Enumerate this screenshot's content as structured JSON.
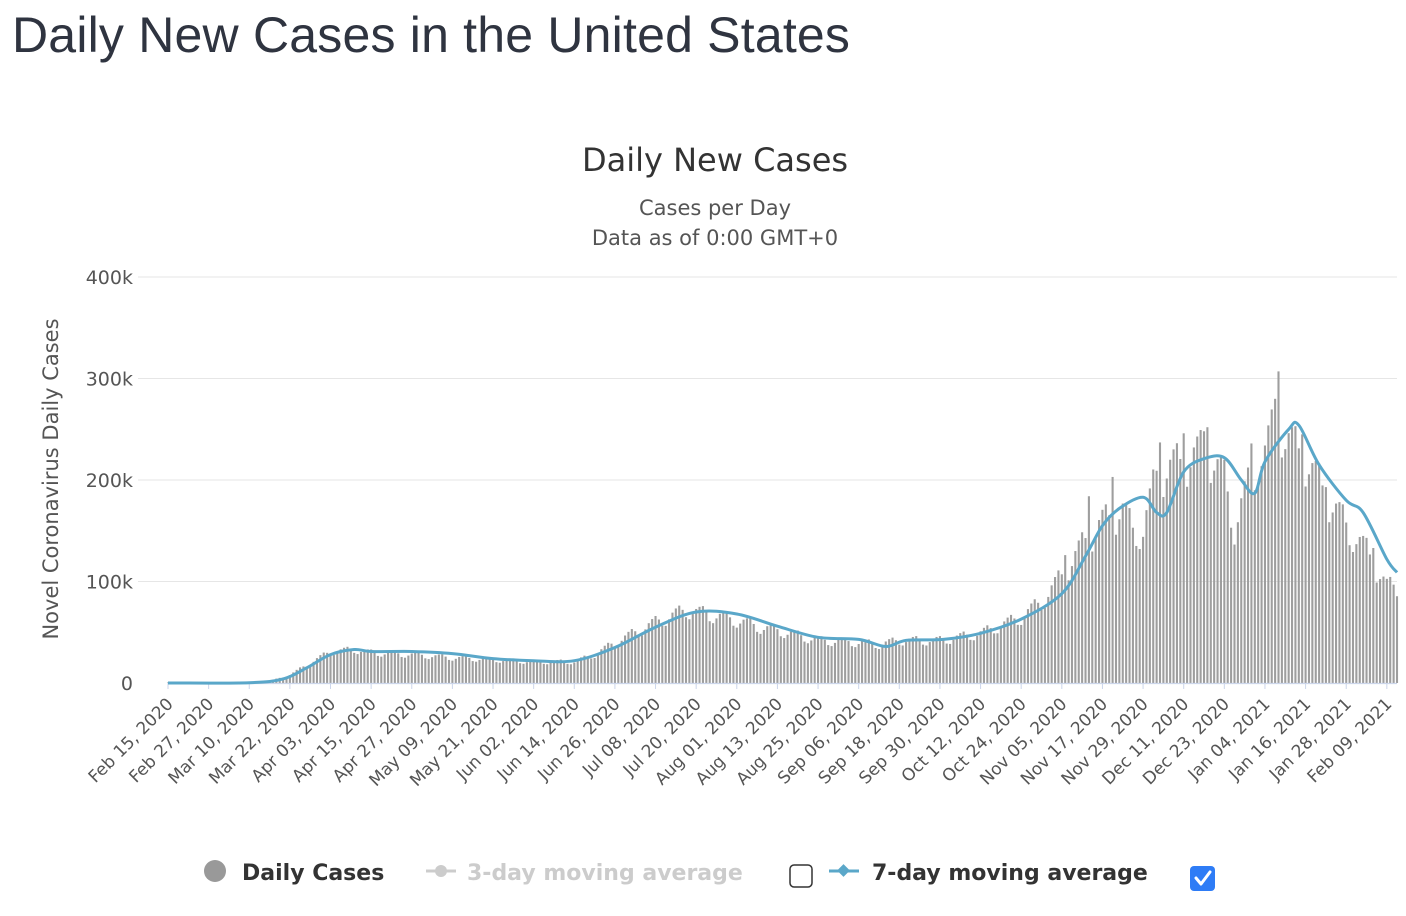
{
  "page": {
    "title": "Daily New Cases in the United States"
  },
  "legend": {
    "items": [
      {
        "label": "Daily Cases",
        "color": "#999999",
        "marker": "circle",
        "enabled": true,
        "checkbox": null
      },
      {
        "label": "3-day moving average",
        "color": "#cccccc",
        "marker": "line-circle",
        "enabled": false,
        "checkbox": false
      },
      {
        "label": "7-day moving average",
        "color": "#5aa7c9",
        "marker": "line-diamond",
        "enabled": true,
        "checkbox": true
      }
    ]
  },
  "chart_data": {
    "type": "bar",
    "title": "Daily New Cases",
    "subtitle": "Cases per Day",
    "subtitle2": "Data as of 0:00 GMT+0",
    "xlabel": "",
    "ylabel": "Novel Coronavirus Daily Cases",
    "ylim": [
      0,
      400000
    ],
    "yticks": [
      0,
      100000,
      200000,
      300000,
      400000
    ],
    "ytick_labels": [
      "0",
      "100k",
      "200k",
      "300k",
      "400k"
    ],
    "grid": true,
    "x_start": "Feb 15, 2020",
    "x_end": "Feb 12, 2021",
    "xtick_labels": [
      "Feb 15, 2020",
      "Feb 27, 2020",
      "Mar 10, 2020",
      "Mar 22, 2020",
      "Apr 03, 2020",
      "Apr 15, 2020",
      "Apr 27, 2020",
      "May 09, 2020",
      "May 21, 2020",
      "Jun 02, 2020",
      "Jun 14, 2020",
      "Jun 26, 2020",
      "Jul 08, 2020",
      "Jul 20, 2020",
      "Aug 01, 2020",
      "Aug 13, 2020",
      "Aug 25, 2020",
      "Sep 06, 2020",
      "Sep 18, 2020",
      "Sep 30, 2020",
      "Oct 12, 2020",
      "Oct 24, 2020",
      "Nov 05, 2020",
      "Nov 17, 2020",
      "Nov 29, 2020",
      "Dec 11, 2020",
      "Dec 23, 2020",
      "Jan 04, 2021",
      "Jan 16, 2021",
      "Jan 28, 2021",
      "Feb 09, 2021"
    ],
    "daily_anchors": [
      [
        "Feb 15, 2020",
        0
      ],
      [
        "Mar 01, 2020",
        50
      ],
      [
        "Mar 10, 2020",
        300
      ],
      [
        "Mar 15, 2020",
        900
      ],
      [
        "Mar 22, 2020",
        8000
      ],
      [
        "Mar 27, 2020",
        18000
      ],
      [
        "Apr 03, 2020",
        31000
      ],
      [
        "Apr 10, 2020",
        33000
      ],
      [
        "Apr 15, 2020",
        30000
      ],
      [
        "Apr 27, 2020",
        28000
      ],
      [
        "May 09, 2020",
        25000
      ],
      [
        "May 21, 2020",
        23000
      ],
      [
        "Jun 02, 2020",
        21000
      ],
      [
        "Jun 14, 2020",
        21000
      ],
      [
        "Jun 20, 2020",
        28000
      ],
      [
        "Jun 26, 2020",
        40000
      ],
      [
        "Jul 08, 2020",
        60000
      ],
      [
        "Jul 17, 2020",
        72000
      ],
      [
        "Jul 25, 2020",
        67000
      ],
      [
        "Aug 01, 2020",
        62000
      ],
      [
        "Aug 08, 2020",
        55000
      ],
      [
        "Aug 13, 2020",
        52000
      ],
      [
        "Aug 25, 2020",
        42000
      ],
      [
        "Sep 06, 2020",
        40000
      ],
      [
        "Sep 12, 2020",
        38000
      ],
      [
        "Sep 18, 2020",
        42000
      ],
      [
        "Sep 30, 2020",
        42000
      ],
      [
        "Oct 12, 2020",
        49000
      ],
      [
        "Oct 24, 2020",
        65000
      ],
      [
        "Oct 30, 2020",
        80000
      ],
      [
        "Nov 05, 2020",
        105000
      ],
      [
        "Nov 12, 2020",
        140000
      ],
      [
        "Nov 17, 2020",
        158000
      ],
      [
        "Nov 23, 2020",
        170000
      ],
      [
        "Nov 26, 2020",
        150000
      ],
      [
        "Nov 29, 2020",
        150000
      ],
      [
        "Dec 03, 2020",
        205000
      ],
      [
        "Dec 11, 2020",
        218000
      ],
      [
        "Dec 18, 2020",
        230000
      ],
      [
        "Dec 23, 2020",
        200000
      ],
      [
        "Dec 26, 2020",
        155000
      ],
      [
        "Dec 28, 2020",
        175000
      ],
      [
        "Jan 02, 2021",
        220000
      ],
      [
        "Jan 04, 2021",
        225000
      ],
      [
        "Jan 08, 2021",
        265000
      ],
      [
        "Jan 10, 2021",
        240000
      ],
      [
        "Jan 16, 2021",
        220000
      ],
      [
        "Jan 22, 2021",
        185000
      ],
      [
        "Jan 28, 2021",
        155000
      ],
      [
        "Feb 03, 2021",
        130000
      ],
      [
        "Feb 09, 2021",
        95000
      ],
      [
        "Feb 12, 2021",
        95000
      ]
    ],
    "weekly_pattern": [
      0.88,
      0.96,
      1.04,
      1.08,
      1.1,
      1.02,
      0.9
    ],
    "spikes": [
      [
        "Nov 06, 2020",
        126000
      ],
      [
        "Nov 13, 2020",
        184000
      ],
      [
        "Nov 20, 2020",
        203000
      ],
      [
        "Dec 04, 2020",
        237000
      ],
      [
        "Dec 11, 2020",
        246000
      ],
      [
        "Dec 17, 2020",
        248000
      ],
      [
        "Dec 18, 2020",
        252000
      ],
      [
        "Dec 31, 2020",
        236000
      ],
      [
        "Jan 07, 2021",
        280000
      ],
      [
        "Jan 08, 2021",
        307000
      ],
      [
        "Jan 15, 2021",
        245000
      ],
      [
        "Jan 22, 2021",
        193000
      ],
      [
        "Feb 05, 2021",
        133000
      ]
    ],
    "series": [
      {
        "name": "7-day moving average",
        "points": [
          [
            "Feb 15, 2020",
            0
          ],
          [
            "Mar 10, 2020",
            300
          ],
          [
            "Mar 20, 2020",
            4000
          ],
          [
            "Mar 27, 2020",
            15000
          ],
          [
            "Apr 03, 2020",
            28000
          ],
          [
            "Apr 10, 2020",
            33000
          ],
          [
            "Apr 15, 2020",
            31000
          ],
          [
            "Apr 27, 2020",
            31000
          ],
          [
            "May 09, 2020",
            29000
          ],
          [
            "May 21, 2020",
            24000
          ],
          [
            "Jun 02, 2020",
            22000
          ],
          [
            "Jun 14, 2020",
            22000
          ],
          [
            "Jun 26, 2020",
            35000
          ],
          [
            "Jul 08, 2020",
            55000
          ],
          [
            "Jul 20, 2020",
            70000
          ],
          [
            "Aug 01, 2020",
            68000
          ],
          [
            "Aug 13, 2020",
            56000
          ],
          [
            "Aug 25, 2020",
            45000
          ],
          [
            "Sep 06, 2020",
            43000
          ],
          [
            "Sep 14, 2020",
            36000
          ],
          [
            "Sep 20, 2020",
            42000
          ],
          [
            "Oct 01, 2020",
            43000
          ],
          [
            "Oct 12, 2020",
            49000
          ],
          [
            "Oct 24, 2020",
            63000
          ],
          [
            "Nov 05, 2020",
            88000
          ],
          [
            "Nov 12, 2020",
            125000
          ],
          [
            "Nov 17, 2020",
            155000
          ],
          [
            "Nov 22, 2020",
            172000
          ],
          [
            "Nov 29, 2020",
            183000
          ],
          [
            "Dec 03, 2020",
            168000
          ],
          [
            "Dec 06, 2020",
            168000
          ],
          [
            "Dec 11, 2020",
            208000
          ],
          [
            "Dec 17, 2020",
            221000
          ],
          [
            "Dec 23, 2020",
            222000
          ],
          [
            "Dec 28, 2020",
            200000
          ],
          [
            "Jan 01, 2021",
            187000
          ],
          [
            "Jan 04, 2021",
            218000
          ],
          [
            "Jan 11, 2021",
            250000
          ],
          [
            "Jan 14, 2021",
            254000
          ],
          [
            "Jan 20, 2021",
            215000
          ],
          [
            "Jan 28, 2021",
            180000
          ],
          [
            "Feb 02, 2021",
            168000
          ],
          [
            "Feb 09, 2021",
            122000
          ],
          [
            "Feb 12, 2021",
            109000
          ]
        ]
      }
    ]
  }
}
